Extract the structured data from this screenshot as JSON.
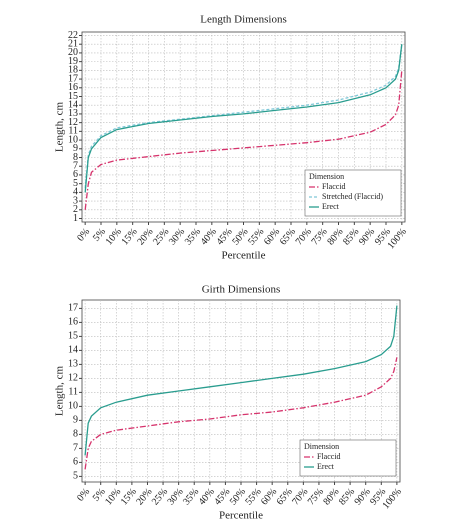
{
  "chart_data": [
    {
      "type": "line",
      "title": "Length Dimensions",
      "x_label": "Percentile",
      "y_label": "Length, cm",
      "x": [
        0,
        1,
        2,
        5,
        10,
        20,
        30,
        40,
        50,
        60,
        70,
        80,
        90,
        95,
        98,
        99,
        100
      ],
      "xlim": [
        -1,
        101
      ],
      "xticks": [
        {
          "value": 0,
          "label": "0%"
        },
        {
          "value": 5,
          "label": "5%"
        },
        {
          "value": 10,
          "label": "10%"
        },
        {
          "value": 15,
          "label": "15%"
        },
        {
          "value": 20,
          "label": "20%"
        },
        {
          "value": 25,
          "label": "25%"
        },
        {
          "value": 30,
          "label": "30%"
        },
        {
          "value": 35,
          "label": "35%"
        },
        {
          "value": 40,
          "label": "40%"
        },
        {
          "value": 45,
          "label": "45%"
        },
        {
          "value": 50,
          "label": "50%"
        },
        {
          "value": 55,
          "label": "55%"
        },
        {
          "value": 60,
          "label": "60%"
        },
        {
          "value": 65,
          "label": "65%"
        },
        {
          "value": 70,
          "label": "70%"
        },
        {
          "value": 75,
          "label": "75%"
        },
        {
          "value": 80,
          "label": "80%"
        },
        {
          "value": 85,
          "label": "85%"
        },
        {
          "value": 90,
          "label": "90%"
        },
        {
          "value": 95,
          "label": "95%"
        },
        {
          "value": 100,
          "label": "100%"
        }
      ],
      "ylim": [
        0.6,
        22.4
      ],
      "yticks": [
        1,
        2,
        3,
        4,
        5,
        6,
        7,
        8,
        9,
        10,
        11,
        12,
        13,
        14,
        15,
        16,
        17,
        18,
        19,
        20,
        21,
        22
      ],
      "grid": true,
      "legend_title": "Dimension",
      "legend_position": "lower right",
      "series": [
        {
          "name": "Flaccid",
          "color": "#d6336c",
          "style": "dashdot",
          "values": [
            2,
            5,
            6.3,
            7.2,
            7.7,
            8.1,
            8.5,
            8.8,
            9.1,
            9.4,
            9.7,
            10.1,
            10.9,
            11.8,
            12.9,
            14,
            18
          ]
        },
        {
          "name": "Stretched (Flaccid)",
          "color": "#7fc8d8",
          "style": "dashed",
          "values": [
            4.5,
            8.3,
            9.3,
            10.5,
            11.4,
            12,
            12.4,
            12.8,
            13.2,
            13.6,
            14,
            14.6,
            15.5,
            16.3,
            17.3,
            18.3,
            21
          ]
        },
        {
          "name": "Erect",
          "color": "#2a9d8f",
          "style": "solid",
          "values": [
            4,
            8,
            9,
            10.3,
            11.2,
            11.9,
            12.3,
            12.7,
            13,
            13.4,
            13.8,
            14.3,
            15.2,
            16,
            17,
            18,
            21
          ]
        }
      ]
    },
    {
      "type": "line",
      "title": "Girth Dimensions",
      "x_label": "Percentile",
      "y_label": "Length, cm",
      "x": [
        0,
        1,
        2,
        5,
        10,
        20,
        30,
        40,
        50,
        60,
        70,
        80,
        90,
        95,
        98,
        99,
        100
      ],
      "xlim": [
        -1,
        101
      ],
      "xticks": [
        {
          "value": 0,
          "label": "0%"
        },
        {
          "value": 5,
          "label": "5%"
        },
        {
          "value": 10,
          "label": "10%"
        },
        {
          "value": 15,
          "label": "15%"
        },
        {
          "value": 20,
          "label": "20%"
        },
        {
          "value": 25,
          "label": "25%"
        },
        {
          "value": 30,
          "label": "30%"
        },
        {
          "value": 35,
          "label": "35%"
        },
        {
          "value": 40,
          "label": "40%"
        },
        {
          "value": 45,
          "label": "45%"
        },
        {
          "value": 50,
          "label": "50%"
        },
        {
          "value": 55,
          "label": "55%"
        },
        {
          "value": 60,
          "label": "60%"
        },
        {
          "value": 65,
          "label": "65%"
        },
        {
          "value": 70,
          "label": "70%"
        },
        {
          "value": 75,
          "label": "75%"
        },
        {
          "value": 80,
          "label": "80%"
        },
        {
          "value": 85,
          "label": "85%"
        },
        {
          "value": 90,
          "label": "90%"
        },
        {
          "value": 95,
          "label": "95%"
        },
        {
          "value": 100,
          "label": "100%"
        }
      ],
      "ylim": [
        4.6,
        17.6
      ],
      "yticks": [
        5,
        6,
        7,
        8,
        9,
        10,
        11,
        12,
        13,
        14,
        15,
        16,
        17
      ],
      "grid": true,
      "legend_title": "Dimension",
      "legend_position": "lower right",
      "series": [
        {
          "name": "Flaccid",
          "color": "#d6336c",
          "style": "dashdot",
          "values": [
            5.5,
            7,
            7.5,
            8,
            8.3,
            8.6,
            8.9,
            9.1,
            9.4,
            9.6,
            9.9,
            10.3,
            10.8,
            11.4,
            12,
            12.5,
            13.5
          ]
        },
        {
          "name": "Erect",
          "color": "#2a9d8f",
          "style": "solid",
          "values": [
            6.5,
            8.8,
            9.3,
            9.9,
            10.3,
            10.8,
            11.1,
            11.4,
            11.7,
            12,
            12.3,
            12.7,
            13.2,
            13.7,
            14.3,
            15,
            17.2
          ]
        }
      ]
    }
  ]
}
